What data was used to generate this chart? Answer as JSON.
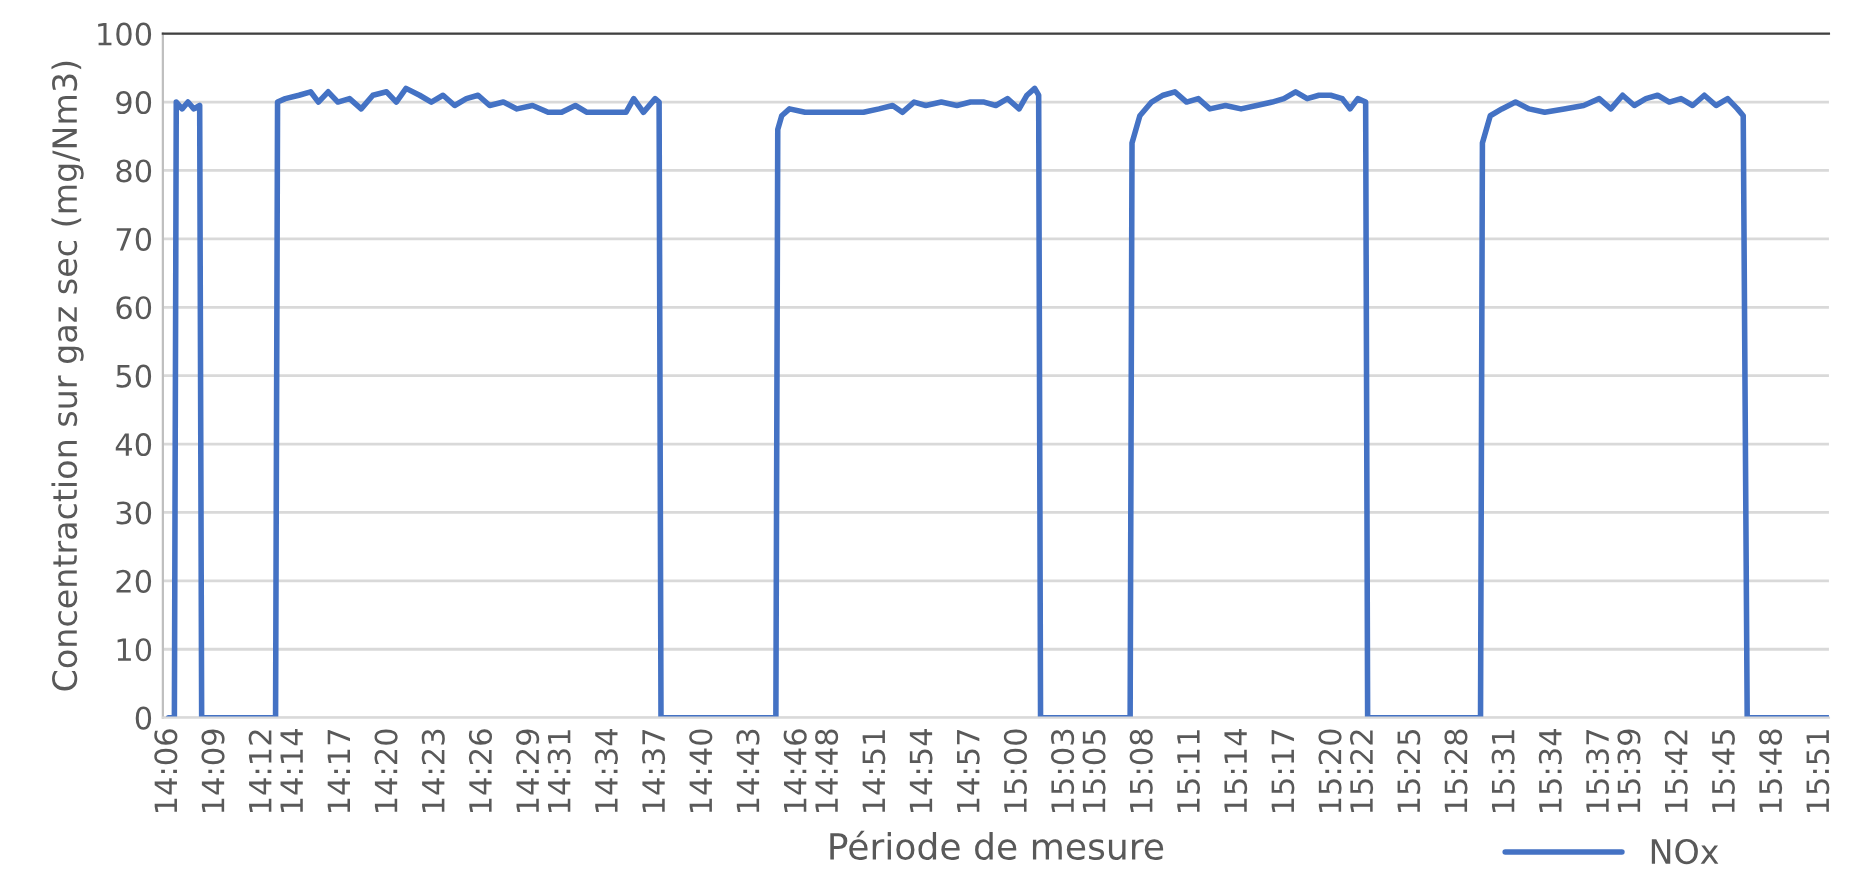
{
  "chart_data": {
    "type": "line",
    "xlabel": "Période de mesure",
    "ylabel": "Concentraction sur gaz sec (mg/Nm3)",
    "ylim": [
      0,
      100
    ],
    "yticks": [
      0,
      10,
      20,
      30,
      40,
      50,
      60,
      70,
      80,
      90,
      100
    ],
    "xlim": [
      14.094,
      15.859
    ],
    "xticks": [
      {
        "value": 14.1,
        "label": "14:06"
      },
      {
        "value": 14.15,
        "label": "14:09"
      },
      {
        "value": 14.2,
        "label": "14:12"
      },
      {
        "value": 14.2333,
        "label": "14:14"
      },
      {
        "value": 14.2833,
        "label": "14:17"
      },
      {
        "value": 14.3333,
        "label": "14:20"
      },
      {
        "value": 14.3833,
        "label": "14:23"
      },
      {
        "value": 14.4333,
        "label": "14:26"
      },
      {
        "value": 14.4833,
        "label": "14:29"
      },
      {
        "value": 14.5167,
        "label": "14:31"
      },
      {
        "value": 14.5667,
        "label": "14:34"
      },
      {
        "value": 14.6167,
        "label": "14:37"
      },
      {
        "value": 14.6667,
        "label": "14:40"
      },
      {
        "value": 14.7167,
        "label": "14:43"
      },
      {
        "value": 14.7667,
        "label": "14:46"
      },
      {
        "value": 14.8,
        "label": "14:48"
      },
      {
        "value": 14.85,
        "label": "14:51"
      },
      {
        "value": 14.9,
        "label": "14:54"
      },
      {
        "value": 14.95,
        "label": "14:57"
      },
      {
        "value": 15.0,
        "label": "15:00"
      },
      {
        "value": 15.05,
        "label": "15:03"
      },
      {
        "value": 15.0833,
        "label": "15:05"
      },
      {
        "value": 15.1333,
        "label": "15:08"
      },
      {
        "value": 15.1833,
        "label": "15:11"
      },
      {
        "value": 15.2333,
        "label": "15:14"
      },
      {
        "value": 15.2833,
        "label": "15:17"
      },
      {
        "value": 15.3333,
        "label": "15:20"
      },
      {
        "value": 15.3667,
        "label": "15:22"
      },
      {
        "value": 15.4167,
        "label": "15:25"
      },
      {
        "value": 15.4667,
        "label": "15:28"
      },
      {
        "value": 15.5167,
        "label": "15:31"
      },
      {
        "value": 15.5667,
        "label": "15:34"
      },
      {
        "value": 15.6167,
        "label": "15:37"
      },
      {
        "value": 15.65,
        "label": "15:39"
      },
      {
        "value": 15.7,
        "label": "15:42"
      },
      {
        "value": 15.75,
        "label": "15:45"
      },
      {
        "value": 15.8,
        "label": "15:48"
      },
      {
        "value": 15.85,
        "label": "15:51"
      }
    ],
    "grid": "y",
    "legend": "bottom",
    "marker": "none",
    "line_style": "solid",
    "series": [
      {
        "name": "NOx",
        "color": "#4472c4",
        "x": [
          14.1,
          14.1062,
          14.1082,
          14.1144,
          14.1206,
          14.1268,
          14.133,
          14.1351,
          14.2134,
          14.2155,
          14.2237,
          14.2382,
          14.2505,
          14.2588,
          14.2691,
          14.2794,
          14.2918,
          14.3041,
          14.3165,
          14.331,
          14.3413,
          14.3516,
          14.366,
          14.3784,
          14.3908,
          14.4031,
          14.4155,
          14.4279,
          14.4402,
          14.4547,
          14.4691,
          14.4856,
          14.5021,
          14.5165,
          14.531,
          14.5433,
          14.5578,
          14.5722,
          14.5846,
          14.5928,
          14.6031,
          14.6155,
          14.6197,
          14.6217,
          14.7434,
          14.7454,
          14.7496,
          14.7578,
          14.7743,
          14.7949,
          14.8156,
          14.8362,
          14.8527,
          14.8671,
          14.8774,
          14.8898,
          14.9022,
          14.9187,
          14.9352,
          14.9496,
          14.964,
          14.9764,
          14.9888,
          15.0011,
          15.0094,
          15.0176,
          15.0218,
          15.0238,
          15.1187,
          15.1207,
          15.129,
          15.1414,
          15.1537,
          15.1661,
          15.1785,
          15.1909,
          15.2032,
          15.2197,
          15.2362,
          15.2527,
          15.2692,
          15.2816,
          15.294,
          15.3063,
          15.3187,
          15.3311,
          15.3434,
          15.3517,
          15.3599,
          15.3682,
          15.3703,
          15.4899,
          15.4919,
          15.5002,
          15.5125,
          15.527,
          15.5414,
          15.5579,
          15.5785,
          15.5992,
          15.6156,
          15.628,
          15.6404,
          15.6528,
          15.6651,
          15.6775,
          15.6899,
          15.7023,
          15.7146,
          15.727,
          15.7394,
          15.7517,
          15.7621,
          15.7682,
          15.7724,
          15.859
        ],
        "values": [
          0,
          0,
          90,
          89,
          90,
          89,
          89.5,
          0,
          0,
          90,
          90.5,
          91,
          91.5,
          90,
          91.5,
          90,
          90.5,
          89,
          91,
          91.5,
          90,
          92,
          91,
          90,
          91,
          89.5,
          90.5,
          91,
          89.5,
          90,
          89,
          89.5,
          88.5,
          88.5,
          89.5,
          88.5,
          88.5,
          88.5,
          88.5,
          90.5,
          88.5,
          90.5,
          90,
          0,
          0,
          86,
          88,
          89,
          88.5,
          88.5,
          88.5,
          88.5,
          89,
          89.5,
          88.5,
          90,
          89.5,
          90,
          89.5,
          90,
          90,
          89.5,
          90.5,
          89,
          91,
          92,
          91,
          0,
          0,
          84,
          88,
          90,
          91,
          91.5,
          90,
          90.5,
          89,
          89.5,
          89,
          89.5,
          90,
          90.5,
          91.5,
          90.5,
          91,
          91,
          90.5,
          89,
          90.5,
          90,
          0,
          0,
          84,
          88,
          89,
          90,
          89,
          88.5,
          89,
          89.5,
          90.5,
          89,
          91,
          89.5,
          90.5,
          91,
          90,
          90.5,
          89.5,
          91,
          89.5,
          90.5,
          89,
          88,
          0,
          0
        ]
      }
    ]
  }
}
